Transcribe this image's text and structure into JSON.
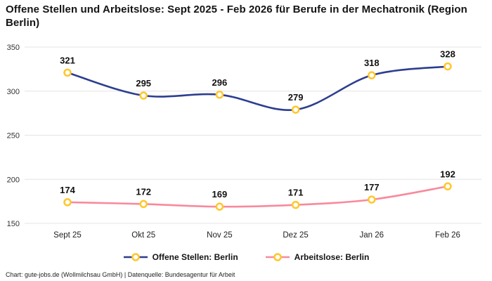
{
  "title": "Offene Stellen und Arbeitslose: Sept 2025 - Feb 2026 für Berufe in der Mechatronik (Region Berlin)",
  "footer": "Chart: gute-jobs.de (Wollmilchsau GmbH) | Datenquelle: Bundesagentur für Arbeit",
  "chart_data": {
    "type": "line",
    "categories": [
      "Sept 25",
      "Okt 25",
      "Nov 25",
      "Dez 25",
      "Jan 26",
      "Feb 26"
    ],
    "series": [
      {
        "name": "Offene Stellen: Berlin",
        "values": [
          321,
          295,
          296,
          279,
          318,
          328
        ],
        "color": "#2d3e8f"
      },
      {
        "name": "Arbeitslose: Berlin",
        "values": [
          174,
          172,
          169,
          171,
          177,
          192
        ],
        "color": "#f9899b"
      }
    ],
    "marker_stroke": "#ffc72c",
    "marker_fill": "#ffffff",
    "ylim": [
      150,
      350
    ],
    "yticks": [
      150,
      200,
      250,
      300,
      350
    ],
    "grid": true,
    "grid_color": "#e4e4e4",
    "label_color": "#111111",
    "tick_color": "#333333",
    "legend_position": "bottom"
  }
}
